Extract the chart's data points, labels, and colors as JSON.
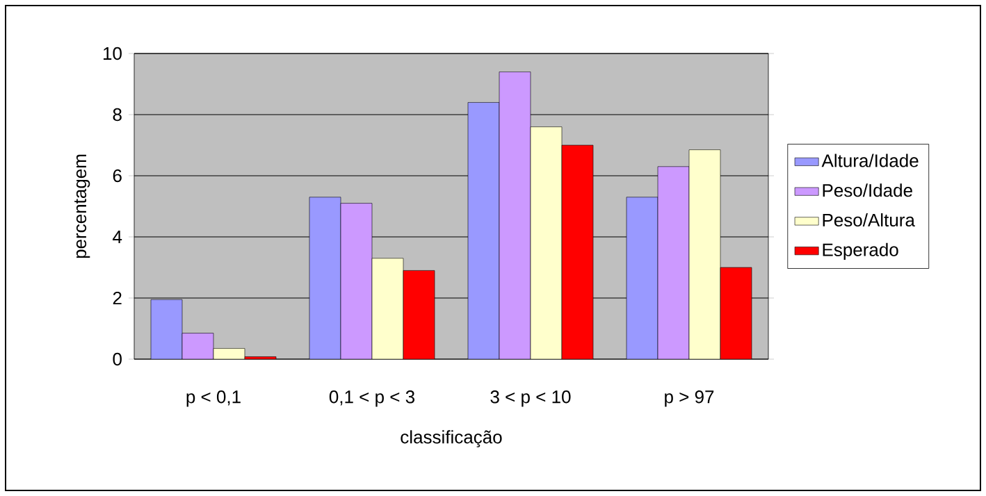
{
  "chart_data": {
    "type": "bar",
    "xlabel": "classificação",
    "ylabel": "percentagem",
    "categories": [
      "p < 0,1",
      "0,1 < p < 3",
      "3 < p < 10",
      "p > 97"
    ],
    "series": [
      {
        "name": "Altura/Idade",
        "color": "#9999ff",
        "values": [
          1.95,
          5.3,
          8.4,
          5.3
        ]
      },
      {
        "name": "Peso/Idade",
        "color": "#cc99ff",
        "values": [
          0.85,
          5.1,
          9.4,
          6.3
        ]
      },
      {
        "name": "Peso/Altura",
        "color": "#ffffcc",
        "values": [
          0.35,
          3.3,
          7.6,
          6.85
        ]
      },
      {
        "name": "Esperado",
        "color": "#ff0000",
        "values": [
          0.08,
          2.9,
          7.0,
          3.0
        ]
      }
    ],
    "ylim": [
      0,
      10
    ],
    "yticks": [
      0,
      2,
      4,
      6,
      8,
      10
    ],
    "grid": "y",
    "legend": "right"
  }
}
